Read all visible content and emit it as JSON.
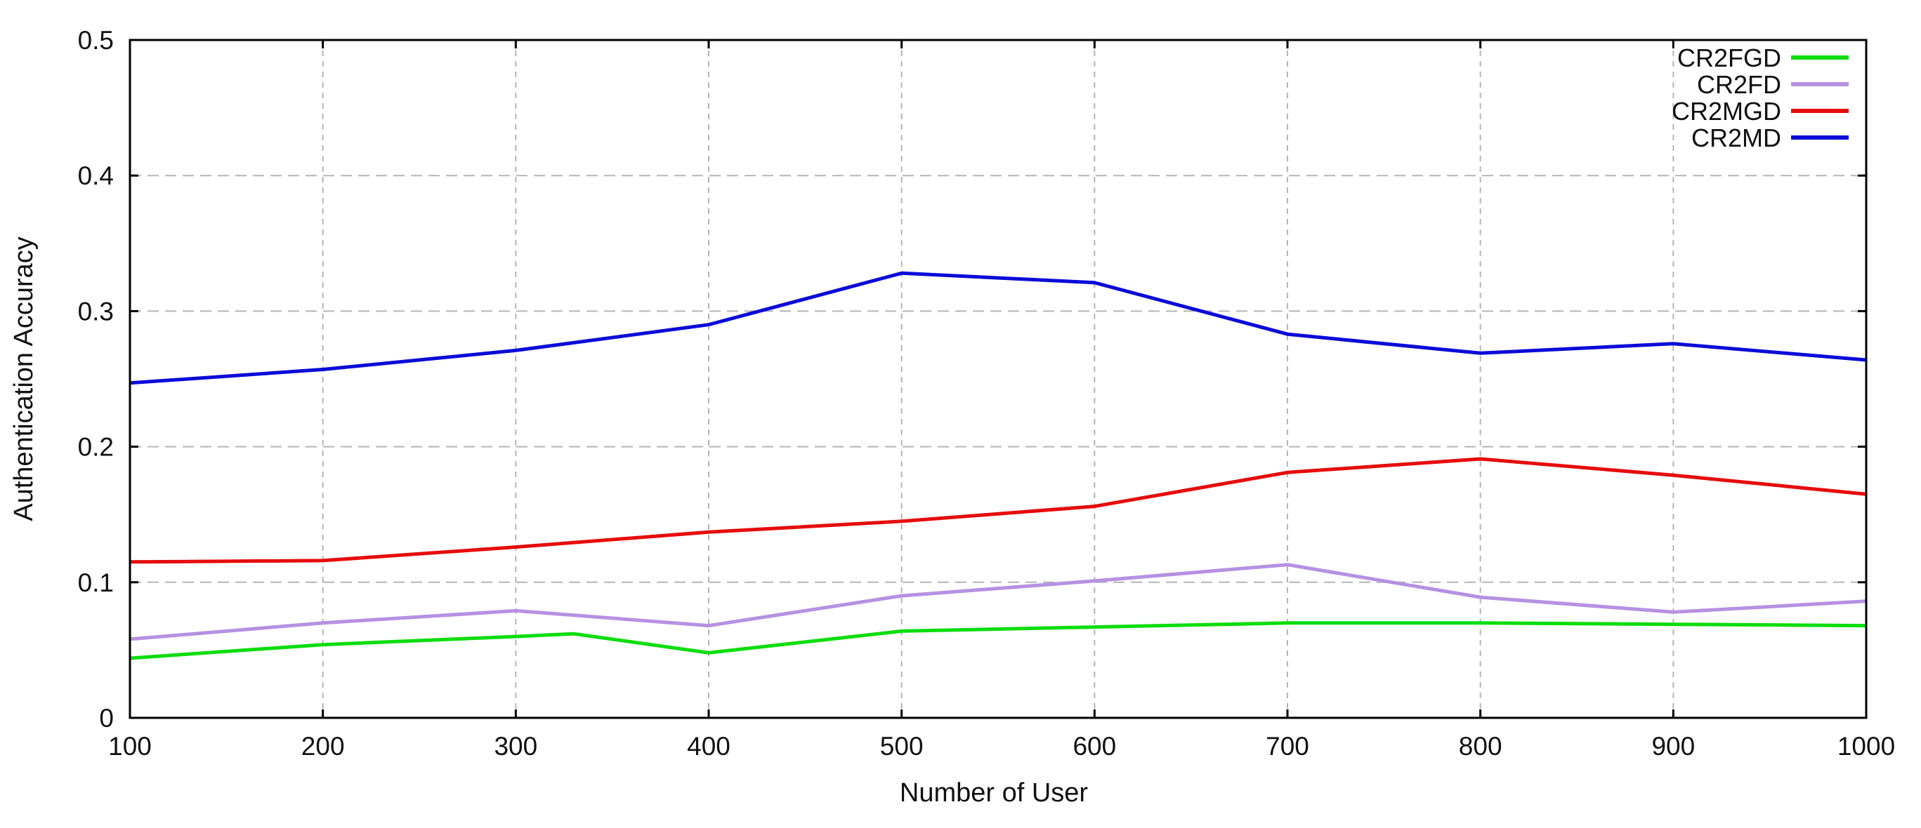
{
  "chart_data": {
    "type": "line",
    "title": "",
    "xlabel": "Number of User",
    "ylabel": "Authentication Accuracy",
    "xlim": [
      100,
      1000
    ],
    "ylim": [
      0,
      0.5
    ],
    "x_ticks": [
      100,
      200,
      300,
      400,
      500,
      600,
      700,
      800,
      900,
      1000
    ],
    "x_tick_labels": [
      "100",
      "200",
      "300",
      "400",
      "500",
      "600",
      "700",
      "800",
      "900",
      "1000"
    ],
    "y_ticks": [
      0,
      0.1,
      0.2,
      0.3,
      0.4,
      0.5
    ],
    "y_tick_labels": [
      "0",
      "0.1",
      "0.2",
      "0.3",
      "0.4",
      "0.5"
    ],
    "grid": true,
    "grid_style": "dashed",
    "legend_position": "top-right-inside",
    "series": [
      {
        "name": "CR2FGD",
        "color": "#0cdd0c",
        "points": [
          [
            100,
            0.044
          ],
          [
            200,
            0.054
          ],
          [
            300,
            0.06
          ],
          [
            330,
            0.062
          ],
          [
            400,
            0.048
          ],
          [
            500,
            0.064
          ],
          [
            600,
            0.067
          ],
          [
            700,
            0.07
          ],
          [
            800,
            0.07
          ],
          [
            900,
            0.069
          ],
          [
            1000,
            0.068
          ]
        ]
      },
      {
        "name": "CR2FD",
        "color": "#b591e2",
        "points": [
          [
            100,
            0.058
          ],
          [
            200,
            0.07
          ],
          [
            300,
            0.079
          ],
          [
            400,
            0.068
          ],
          [
            500,
            0.09
          ],
          [
            600,
            0.101
          ],
          [
            700,
            0.113
          ],
          [
            800,
            0.089
          ],
          [
            900,
            0.078
          ],
          [
            1000,
            0.086
          ]
        ]
      },
      {
        "name": "CR2MGD",
        "color": "#e60c0c",
        "points": [
          [
            100,
            0.115
          ],
          [
            200,
            0.116
          ],
          [
            300,
            0.126
          ],
          [
            400,
            0.137
          ],
          [
            500,
            0.145
          ],
          [
            600,
            0.156
          ],
          [
            700,
            0.181
          ],
          [
            800,
            0.191
          ],
          [
            900,
            0.179
          ],
          [
            1000,
            0.165
          ]
        ]
      },
      {
        "name": "CR2MD",
        "color": "#0b0bd8",
        "points": [
          [
            100,
            0.247
          ],
          [
            200,
            0.257
          ],
          [
            300,
            0.271
          ],
          [
            400,
            0.29
          ],
          [
            500,
            0.328
          ],
          [
            600,
            0.321
          ],
          [
            700,
            0.283
          ],
          [
            800,
            0.269
          ],
          [
            900,
            0.276
          ],
          [
            1000,
            0.264
          ]
        ]
      }
    ],
    "colors": {
      "background": "#ffffff",
      "plot_border": "#000000",
      "grid_line": "#b5b5b5",
      "tick_mark": "#000000",
      "text": "#111111"
    }
  }
}
